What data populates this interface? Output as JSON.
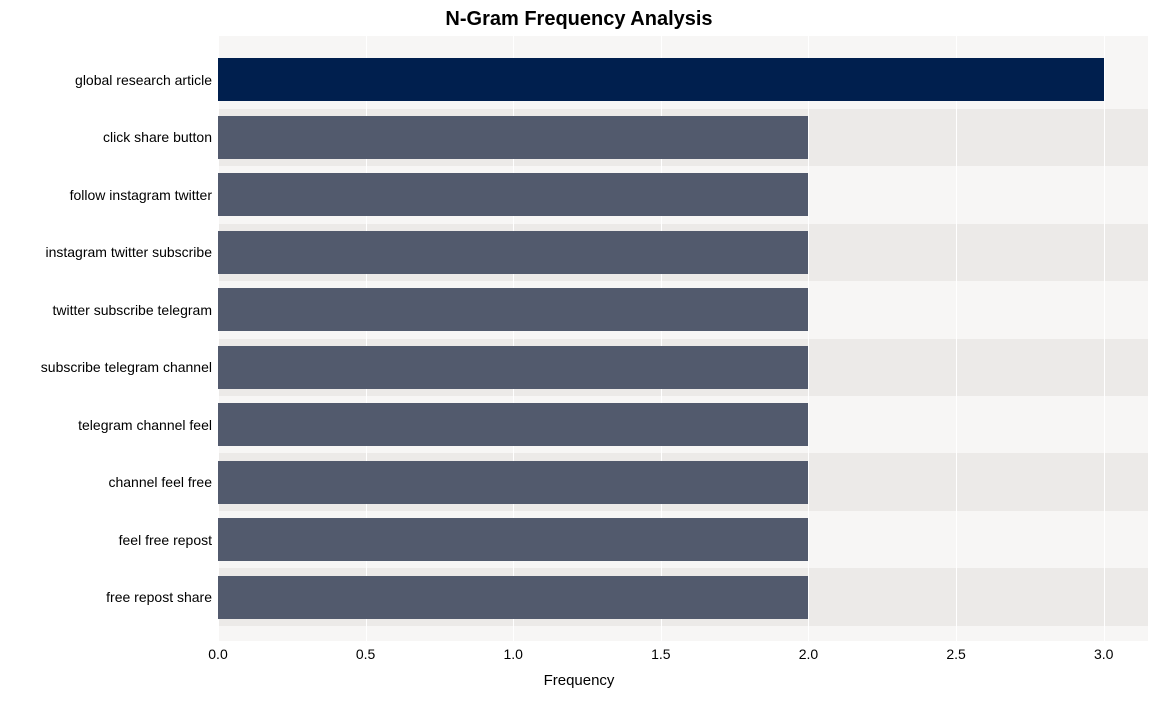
{
  "chart": {
    "type": "bar-horizontal",
    "title": "N-Gram Frequency Analysis",
    "title_fontsize": 20,
    "title_fontweight": "bold",
    "xlabel": "Frequency",
    "xlabel_fontsize": 15,
    "background_color": "#ffffff",
    "plot_bg_color": "#f7f6f5",
    "band_bg_color": "#eceae8",
    "grid_color": "#ffffff",
    "tick_fontsize": 14,
    "ytick_fontsize": 14,
    "x": {
      "min": 0.0,
      "max": 3.15,
      "ticks": [
        0.0,
        0.5,
        1.0,
        1.5,
        2.0,
        2.5,
        3.0
      ],
      "tick_labels": [
        "0.0",
        "0.5",
        "1.0",
        "1.5",
        "2.0",
        "2.5",
        "3.0"
      ]
    },
    "categories": [
      "global research article",
      "click share button",
      "follow instagram twitter",
      "instagram twitter subscribe",
      "twitter subscribe telegram",
      "subscribe telegram channel",
      "telegram channel feel",
      "channel feel free",
      "feel free repost",
      "free repost share"
    ],
    "values": [
      3.0,
      2.0,
      2.0,
      2.0,
      2.0,
      2.0,
      2.0,
      2.0,
      2.0,
      2.0
    ],
    "bar_colors": [
      "#001f4e",
      "#525a6d",
      "#525a6d",
      "#525a6d",
      "#525a6d",
      "#525a6d",
      "#525a6d",
      "#525a6d",
      "#525a6d",
      "#525a6d"
    ],
    "bar_height_ratio": 0.75
  }
}
